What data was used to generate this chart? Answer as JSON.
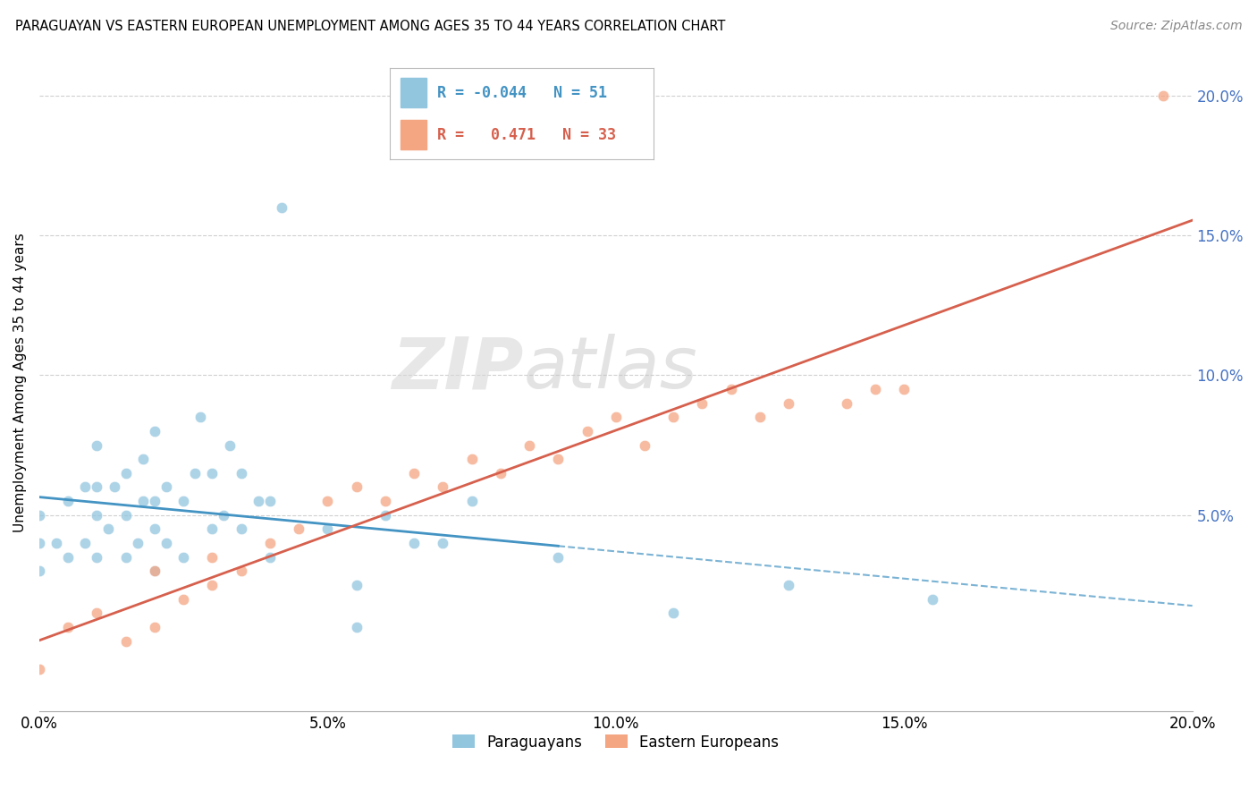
{
  "title": "PARAGUAYAN VS EASTERN EUROPEAN UNEMPLOYMENT AMONG AGES 35 TO 44 YEARS CORRELATION CHART",
  "source": "Source: ZipAtlas.com",
  "ylabel": "Unemployment Among Ages 35 to 44 years",
  "xlim": [
    0.0,
    0.2
  ],
  "ylim": [
    -0.02,
    0.215
  ],
  "xtick_labels": [
    "0.0%",
    "5.0%",
    "10.0%",
    "15.0%",
    "20.0%"
  ],
  "xtick_vals": [
    0.0,
    0.05,
    0.1,
    0.15,
    0.2
  ],
  "ytick_labels": [
    "5.0%",
    "10.0%",
    "15.0%",
    "20.0%"
  ],
  "ytick_vals": [
    0.05,
    0.1,
    0.15,
    0.2
  ],
  "blue_color": "#92c5de",
  "pink_color": "#f4a582",
  "blue_line_color": "#4393c3",
  "pink_line_color": "#d6604d",
  "legend_R_blue": "-0.044",
  "legend_N_blue": "51",
  "legend_R_pink": "0.471",
  "legend_N_pink": "33",
  "paraguayan_x": [
    0.0,
    0.0,
    0.0,
    0.003,
    0.005,
    0.005,
    0.008,
    0.008,
    0.01,
    0.01,
    0.01,
    0.01,
    0.012,
    0.013,
    0.015,
    0.015,
    0.015,
    0.017,
    0.018,
    0.018,
    0.02,
    0.02,
    0.02,
    0.02,
    0.022,
    0.022,
    0.025,
    0.025,
    0.027,
    0.028,
    0.03,
    0.03,
    0.032,
    0.033,
    0.035,
    0.035,
    0.038,
    0.04,
    0.04,
    0.042,
    0.05,
    0.055,
    0.055,
    0.06,
    0.065,
    0.07,
    0.075,
    0.09,
    0.11,
    0.13,
    0.155
  ],
  "paraguayan_y": [
    0.03,
    0.04,
    0.05,
    0.04,
    0.035,
    0.055,
    0.04,
    0.06,
    0.035,
    0.05,
    0.06,
    0.075,
    0.045,
    0.06,
    0.035,
    0.05,
    0.065,
    0.04,
    0.055,
    0.07,
    0.03,
    0.045,
    0.055,
    0.08,
    0.04,
    0.06,
    0.035,
    0.055,
    0.065,
    0.085,
    0.045,
    0.065,
    0.05,
    0.075,
    0.045,
    0.065,
    0.055,
    0.035,
    0.055,
    0.16,
    0.045,
    0.01,
    0.025,
    0.05,
    0.04,
    0.04,
    0.055,
    0.035,
    0.015,
    0.025,
    0.02
  ],
  "eastern_x": [
    0.0,
    0.005,
    0.01,
    0.015,
    0.02,
    0.02,
    0.025,
    0.03,
    0.03,
    0.035,
    0.04,
    0.045,
    0.05,
    0.055,
    0.06,
    0.065,
    0.07,
    0.075,
    0.08,
    0.085,
    0.09,
    0.095,
    0.1,
    0.105,
    0.11,
    0.115,
    0.12,
    0.125,
    0.13,
    0.14,
    0.145,
    0.15,
    0.195
  ],
  "eastern_y": [
    -0.005,
    0.01,
    0.015,
    0.005,
    0.01,
    0.03,
    0.02,
    0.025,
    0.035,
    0.03,
    0.04,
    0.045,
    0.055,
    0.06,
    0.055,
    0.065,
    0.06,
    0.07,
    0.065,
    0.075,
    0.07,
    0.08,
    0.085,
    0.075,
    0.085,
    0.09,
    0.095,
    0.085,
    0.09,
    0.09,
    0.095,
    0.095,
    0.2
  ],
  "watermark_zip": "ZIP",
  "watermark_atlas": "atlas",
  "background_color": "#ffffff",
  "grid_color": "#d0d0d0"
}
